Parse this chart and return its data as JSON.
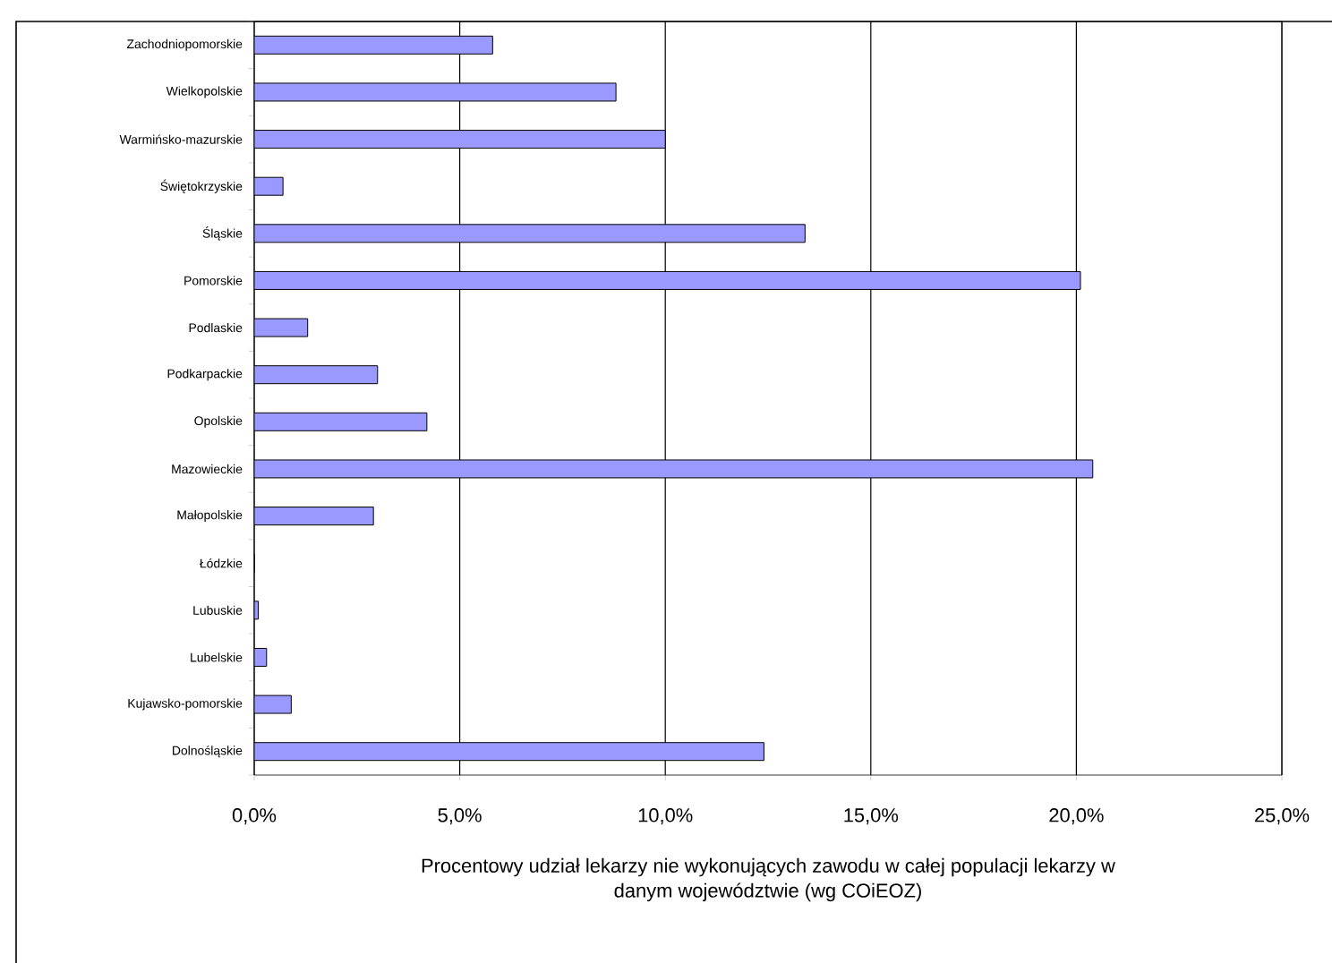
{
  "chart_data": {
    "type": "bar",
    "orientation": "horizontal",
    "xlabel": "Procentowy udział lekarzy nie wykonujących zawodu w całej populacji lekarzy w danym województwie (wg COiEOZ)",
    "categories": [
      "Zachodniopomorskie",
      "Wielkopolskie",
      "Warmińsko-mazurskie",
      "Świętokrzyskie",
      "Śląskie",
      "Pomorskie",
      "Podlaskie",
      "Podkarpackie",
      "Opolskie",
      "Mazowieckie",
      "Małopolskie",
      "Łódzkie",
      "Lubuskie",
      "Lubelskie",
      "Kujawsko-pomorskie",
      "Dolnośląskie"
    ],
    "values": [
      5.8,
      8.8,
      10.0,
      0.7,
      13.4,
      20.1,
      1.3,
      3.0,
      4.2,
      20.4,
      2.9,
      0,
      0.1,
      0.3,
      0.9,
      12.4
    ],
    "color": "#9999ff",
    "xlim": [
      0,
      25
    ],
    "xticks": [
      {
        "value": 0,
        "label": "0,0%"
      },
      {
        "value": 5,
        "label": "5,0%"
      },
      {
        "value": 10,
        "label": "10,0%"
      },
      {
        "value": 15,
        "label": "15,0%"
      },
      {
        "value": 20,
        "label": "20,0%"
      },
      {
        "value": 25,
        "label": "25,0%"
      }
    ],
    "grid": "x"
  }
}
